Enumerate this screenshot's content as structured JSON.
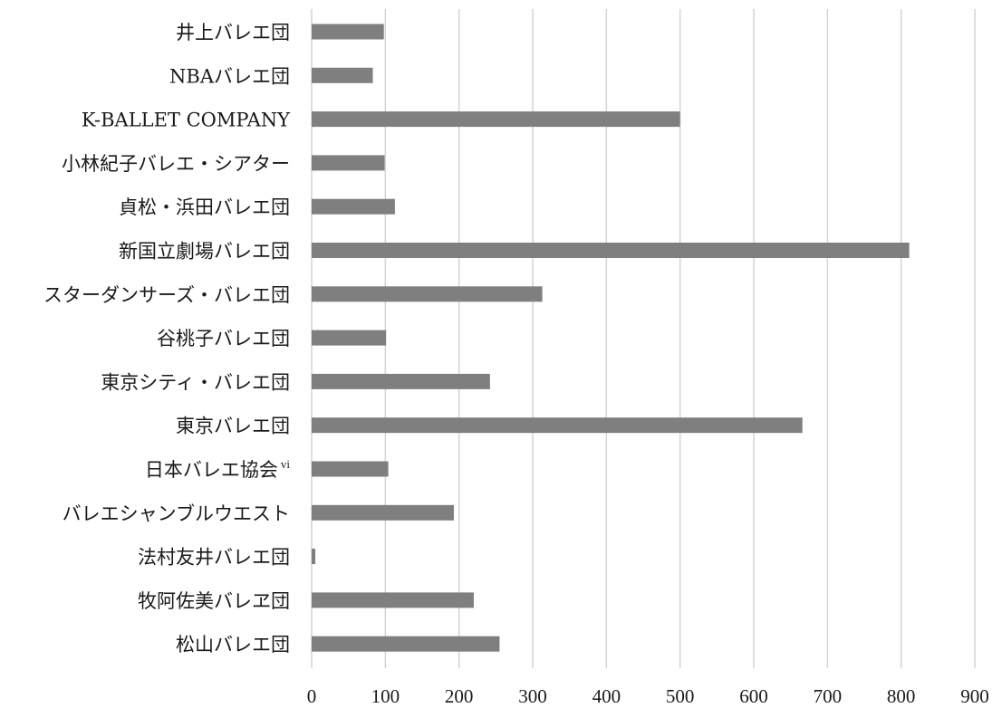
{
  "chart_data": {
    "type": "bar",
    "orientation": "horizontal",
    "categories": [
      {
        "label": "井上バレエ団",
        "superscript": ""
      },
      {
        "label": "NBAバレエ団",
        "superscript": ""
      },
      {
        "label": "K-BALLET COMPANY",
        "superscript": ""
      },
      {
        "label": "小林紀子バレエ・シアター",
        "superscript": ""
      },
      {
        "label": "貞松・浜田バレエ団",
        "superscript": ""
      },
      {
        "label": "新国立劇場バレエ団",
        "superscript": ""
      },
      {
        "label": "スターダンサーズ・バレエ団",
        "superscript": ""
      },
      {
        "label": "谷桃子バレエ団",
        "superscript": ""
      },
      {
        "label": "東京シティ・バレエ団",
        "superscript": ""
      },
      {
        "label": "東京バレエ団",
        "superscript": ""
      },
      {
        "label": "日本バレエ協会",
        "superscript": "vi"
      },
      {
        "label": "バレエシャンブルウエスト",
        "superscript": ""
      },
      {
        "label": "法村友井バレエ団",
        "superscript": ""
      },
      {
        "label": "牧阿佐美バレヱ団",
        "superscript": ""
      },
      {
        "label": "松山バレエ団",
        "superscript": ""
      }
    ],
    "values": [
      98,
      83,
      500,
      99,
      113,
      811,
      313,
      101,
      242,
      666,
      104,
      193,
      5,
      220,
      255
    ],
    "xlim": [
      0,
      900
    ],
    "xticks": [
      "0",
      "100",
      "200",
      "300",
      "400",
      "500",
      "600",
      "700",
      "800",
      "900"
    ],
    "grid": "vertical",
    "bar_color": "#7f7f7f",
    "grid_color": "#d4d4d4",
    "title": "",
    "xlabel": "",
    "ylabel": ""
  }
}
